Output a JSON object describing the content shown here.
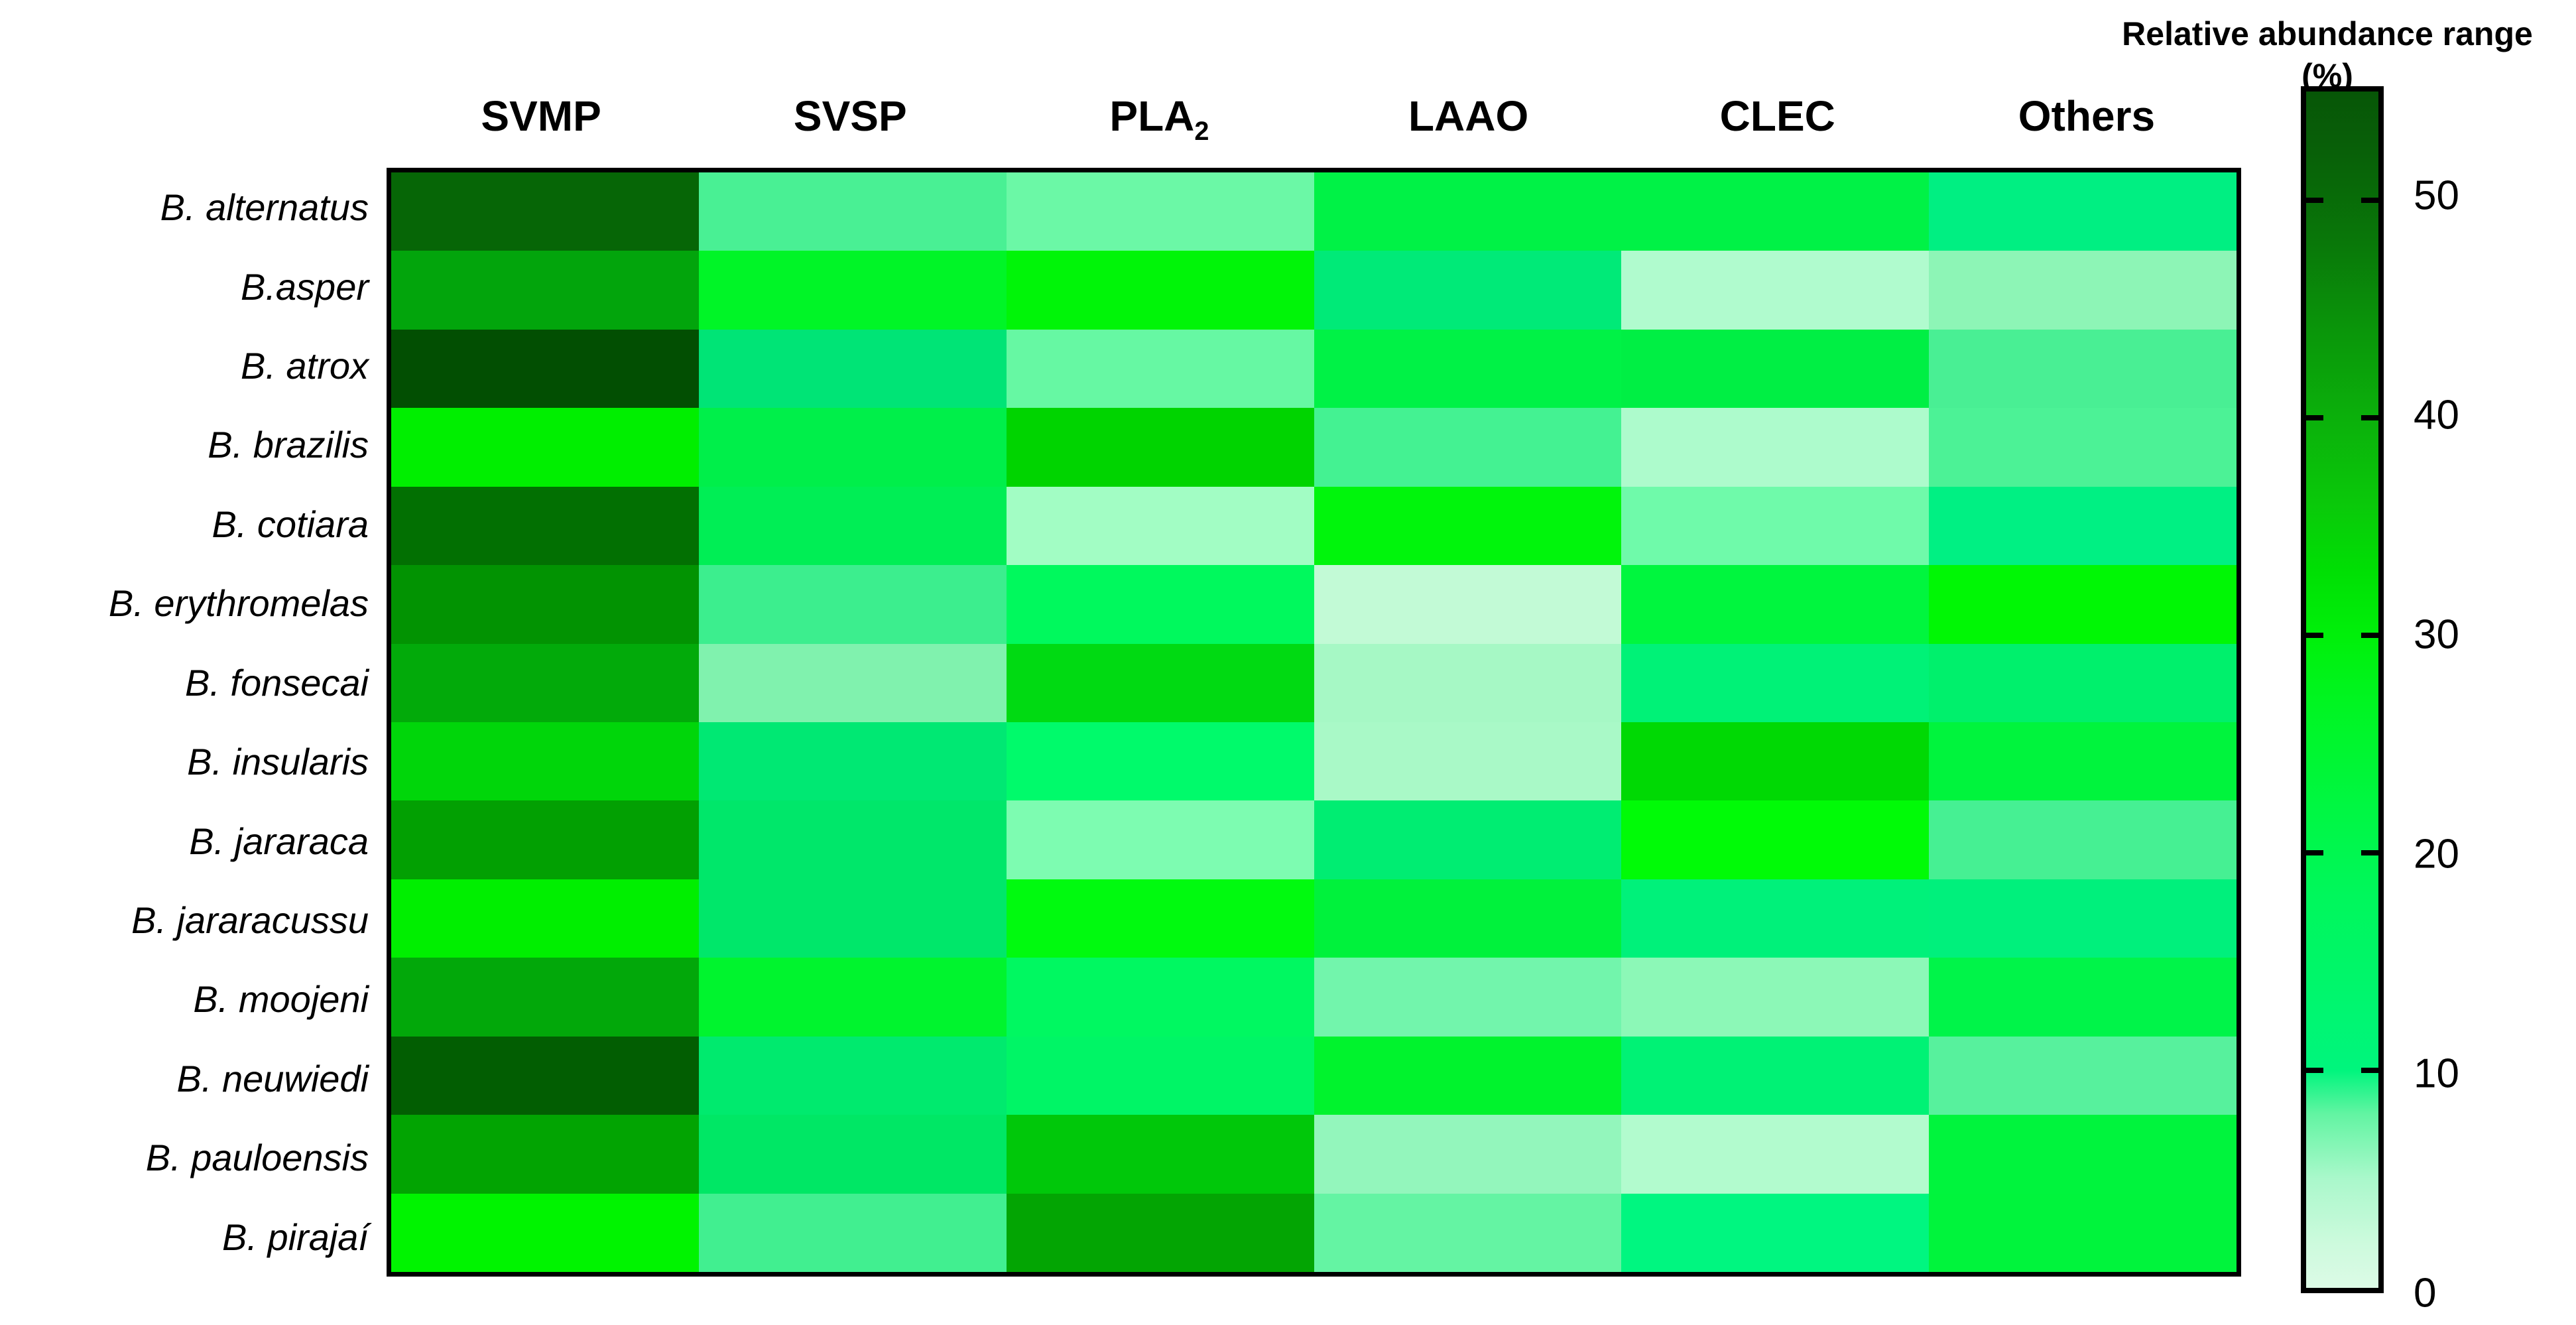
{
  "figure": {
    "legend_title_line1": "Relative abundance range",
    "legend_title_line2": "(%)"
  },
  "heatmap": {
    "columns": [
      {
        "label": "SVMP",
        "sub": ""
      },
      {
        "label": "SVSP",
        "sub": ""
      },
      {
        "label": "PLA",
        "sub": "2"
      },
      {
        "label": "LAAO",
        "sub": ""
      },
      {
        "label": "CLEC",
        "sub": ""
      },
      {
        "label": "Others",
        "sub": ""
      }
    ]
  },
  "chart_data": {
    "type": "heatmap",
    "title": "Relative abundance range (%)",
    "columns": [
      "SVMP",
      "SVSP",
      "PLA2",
      "LAAO",
      "CLEC",
      "Others"
    ],
    "rows": [
      "B. alternatus",
      "B.asper",
      "B. atrox",
      "B. brazilis",
      "B. cotiara",
      "B. erythromelas",
      "B. fonsecai",
      "B. insularis",
      "B. jararaca",
      "B. jararacussu",
      "B. moojeni",
      "B. neuwiedi",
      "B. pauloensis",
      "B. pirajaí"
    ],
    "values": [
      [
        50,
        9,
        7,
        21,
        21,
        10
      ],
      [
        42,
        25,
        28,
        12,
        4,
        6
      ],
      [
        54,
        12,
        7,
        21,
        21,
        9
      ],
      [
        29,
        20,
        33,
        9,
        4,
        9
      ],
      [
        49,
        17,
        5,
        29,
        7,
        10
      ],
      [
        44,
        10,
        17,
        3,
        22,
        28
      ],
      [
        42,
        7,
        32,
        5,
        12,
        13
      ],
      [
        33,
        13,
        14,
        5,
        33,
        22
      ],
      [
        42,
        14,
        7,
        13,
        28,
        9
      ],
      [
        29,
        14,
        28,
        22,
        12,
        12
      ],
      [
        41,
        25,
        16,
        7,
        6,
        20
      ],
      [
        52,
        13,
        15,
        23,
        12,
        8
      ],
      [
        42,
        15,
        36,
        5,
        4,
        22
      ],
      [
        29,
        9,
        42,
        7,
        10,
        22
      ]
    ],
    "colors": [
      [
        "#066606",
        "#49f094",
        "#6bf8a6",
        "#00f246",
        "#00f246",
        "#00ef82"
      ],
      [
        "#02a50c",
        "#00f527",
        "#00f508",
        "#00ea78",
        "#b0fbce",
        "#8df5b6"
      ],
      [
        "#024f02",
        "#00e476",
        "#66f8a3",
        "#00f246",
        "#00ef44",
        "#49ef94"
      ],
      [
        "#00ef00",
        "#00ef4a",
        "#00d400",
        "#44f292",
        "#adfbcc",
        "#4cf296"
      ],
      [
        "#027002",
        "#00ee55",
        "#a2fdc4",
        "#00f50c",
        "#6ffaaa",
        "#00f083"
      ],
      [
        "#029302",
        "#3cee8e",
        "#00f95d",
        "#c2fad6",
        "#00f63e",
        "#00f705"
      ],
      [
        "#02aa0a",
        "#80f2ae",
        "#00da12",
        "#a6f8c5",
        "#00f277",
        "#00f06c"
      ],
      [
        "#00d60a",
        "#00e873",
        "#00fa6b",
        "#a9f9c7",
        "#00d904",
        "#00f43d"
      ],
      [
        "#02a002",
        "#00e76a",
        "#7dfcb1",
        "#00ed72",
        "#00fb07",
        "#46f093"
      ],
      [
        "#00ef00",
        "#00e76a",
        "#00fa0f",
        "#00f23c",
        "#00f17a",
        "#00f07c"
      ],
      [
        "#02a80a",
        "#00f42e",
        "#00f861",
        "#72f5ac",
        "#8cf8b7",
        "#00f449"
      ],
      [
        "#025e02",
        "#00ea6e",
        "#00f566",
        "#00f32d",
        "#00f275",
        "#57f19d"
      ],
      [
        "#02a402",
        "#00e765",
        "#00c80a",
        "#93f6bc",
        "#b2fbce",
        "#00f43d"
      ],
      [
        "#00f400",
        "#41ef90",
        "#03a503",
        "#64f4a3",
        "#00f680",
        "#00f43c"
      ]
    ],
    "colorbar": {
      "label": "Relative abundance range (%)",
      "min": 0,
      "max": 55,
      "ticks": [
        50,
        40,
        30,
        20,
        10,
        0
      ],
      "gradient_stops": [
        {
          "value": 0,
          "color": "#dcfbe6"
        },
        {
          "value": 2,
          "color": "#cdfadd"
        },
        {
          "value": 5,
          "color": "#aaf8cb"
        },
        {
          "value": 8,
          "color": "#62f4a2"
        },
        {
          "value": 10,
          "color": "#00f57d"
        },
        {
          "value": 14,
          "color": "#00f66b"
        },
        {
          "value": 18,
          "color": "#00f75c"
        },
        {
          "value": 22,
          "color": "#00f743"
        },
        {
          "value": 27,
          "color": "#00f521"
        },
        {
          "value": 30,
          "color": "#00f00a"
        },
        {
          "value": 33,
          "color": "#00df04"
        },
        {
          "value": 36,
          "color": "#0ac90a"
        },
        {
          "value": 40,
          "color": "#0bb00b"
        },
        {
          "value": 44,
          "color": "#0a960a"
        },
        {
          "value": 48,
          "color": "#097809"
        },
        {
          "value": 52,
          "color": "#086108"
        },
        {
          "value": 55,
          "color": "#075607"
        }
      ]
    },
    "layout_hints": {
      "grid": "off",
      "legend_position": "right",
      "background": "#ffffff",
      "border_color": "#000000"
    }
  }
}
